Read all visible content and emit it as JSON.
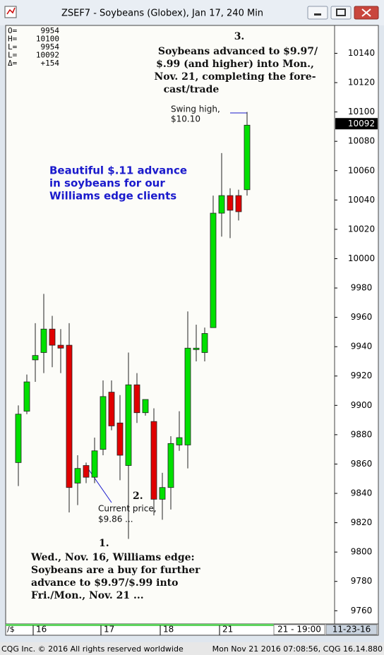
{
  "window": {
    "title": "ZSEF7 - Soybeans (Globex), Jan 17, 240 Min"
  },
  "chart_data": {
    "type": "candlestick",
    "categories": [
      null,
      null,
      "16",
      null,
      null,
      null,
      null,
      null,
      null,
      null,
      "17",
      null,
      null,
      null,
      null,
      null,
      null,
      "18",
      null,
      null,
      null,
      null,
      null,
      null,
      "21",
      null,
      null,
      null
    ],
    "open": [
      9861,
      9896,
      9931,
      9936,
      9952,
      9941,
      9941,
      9847,
      9859,
      9851,
      9870,
      9909,
      9888,
      9859,
      9914,
      9895,
      9889,
      9836,
      9844,
      9873,
      9873,
      9938,
      9936,
      9953,
      10031,
      10043,
      10043,
      10047
    ],
    "high": [
      9900,
      9921,
      9956,
      9976,
      9961,
      9952,
      9956,
      9866,
      9861,
      9878,
      9917,
      9917,
      9907,
      9936,
      9922,
      9904,
      9898,
      9854,
      9879,
      9896,
      9964,
      9955,
      9953,
      10043,
      10072,
      10048,
      10047,
      10100
    ],
    "low": [
      9845,
      9894,
      9916,
      9922,
      9926,
      9922,
      9827,
      9832,
      9847,
      9847,
      9866,
      9883,
      9849,
      9809,
      9888,
      9893,
      9825,
      9822,
      9829,
      9869,
      9857,
      9930,
      9930,
      9953,
      10015,
      10014,
      10026,
      10043
    ],
    "close": [
      9894,
      9916,
      9934,
      9952,
      9941,
      9939,
      9844,
      9857,
      9851,
      9869,
      9906,
      9886,
      9866,
      9914,
      9895,
      9904,
      9836,
      9844,
      9874,
      9878,
      9939,
      9939,
      9949,
      10031,
      10043,
      10033,
      10032,
      10091
    ],
    "up_color": "#00e000",
    "down_color": "#e00000",
    "ylim": [
      9751,
      10159
    ],
    "yticks": [
      9760,
      9780,
      9800,
      9820,
      9840,
      9860,
      9880,
      9900,
      9920,
      9940,
      9960,
      9980,
      10000,
      10020,
      10040,
      10060,
      10080,
      10100,
      10120,
      10140
    ],
    "last_price": 10092,
    "info": [
      {
        "label": "O=",
        "value": "9954"
      },
      {
        "label": "H=",
        "value": "10100"
      },
      {
        "label": "L=",
        "value": "9954"
      },
      {
        "label": "L=",
        "value": "10092"
      },
      {
        "label": "Δ=",
        "value": "+154"
      }
    ],
    "x_time_label": "21 - 19:00",
    "x_date_label": "11-23-16",
    "annotations": [
      {
        "lines": [
          "3."
        ]
      },
      {
        "lines": [
          "Soybeans advanced to $9.97/",
          "$.99 (and higher) into Mon.,",
          "Nov. 21, completing the fore-",
          "cast/trade"
        ]
      },
      {
        "lines": [
          "Swing high,",
          "$10.10"
        ]
      },
      {
        "lines": [
          "Beautiful $.11 advance",
          "in soybeans for our",
          "Williams edge clients"
        ]
      },
      {
        "lines": [
          "Current price,",
          "$9.86 ..."
        ]
      },
      {
        "lines": [
          "2."
        ]
      },
      {
        "lines": [
          "1."
        ]
      },
      {
        "lines": [
          "Wed., Nov. 16, Williams edge:",
          "Soybeans are a buy for further",
          "advance to $9.97/$.99 into",
          "Fri./Mon., Nov. 21 ..."
        ]
      }
    ]
  },
  "footer": {
    "left": "CQG Inc. © 2016 All rights reserved worldwide",
    "right": "Mon Nov 21 2016 07:08:56, CQG 16.14.880"
  }
}
